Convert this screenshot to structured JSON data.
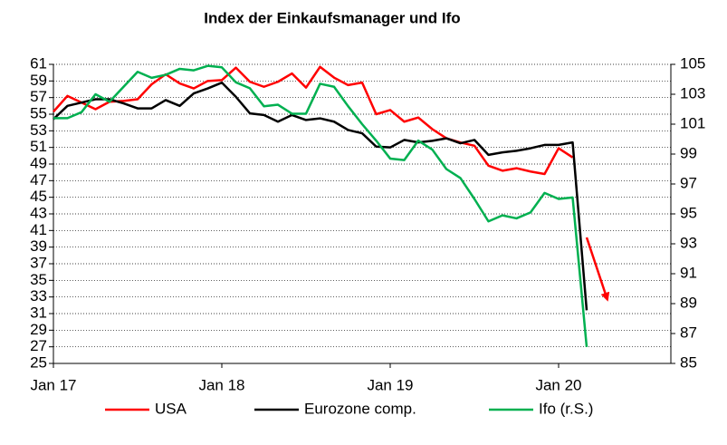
{
  "chart_data": {
    "type": "line",
    "title": "Index der Einkaufsmanager und Ifo",
    "x": [
      0,
      1,
      2,
      3,
      4,
      5,
      6,
      7,
      8,
      9,
      10,
      11,
      12,
      13,
      14,
      15,
      16,
      17,
      18,
      19,
      20,
      21,
      22,
      23,
      24,
      25,
      26,
      27,
      28,
      29,
      30,
      31,
      32,
      33,
      34,
      35,
      36,
      37,
      38
    ],
    "xlim": [
      0,
      44
    ],
    "xticks": [
      {
        "value": 0,
        "label": "Jan 17"
      },
      {
        "value": 12,
        "label": "Jan 18"
      },
      {
        "value": 24,
        "label": "Jan 19"
      },
      {
        "value": 36,
        "label": "Jan 20"
      }
    ],
    "ylim": [
      25,
      61
    ],
    "yticks": [
      25,
      27,
      29,
      31,
      33,
      35,
      37,
      39,
      41,
      43,
      45,
      47,
      49,
      51,
      53,
      55,
      57,
      59,
      61
    ],
    "y2lim": [
      85,
      105
    ],
    "y2ticks": [
      85,
      87,
      89,
      91,
      93,
      95,
      97,
      99,
      101,
      103,
      105
    ],
    "grid": true,
    "legend": "bottom",
    "series": [
      {
        "name": "USA",
        "color": "#ff0000",
        "values": [
          55.3,
          57.2,
          56.4,
          55.6,
          56.5,
          56.6,
          56.8,
          58.6,
          59.8,
          58.7,
          58.1,
          59.0,
          59.1,
          60.6,
          58.9,
          58.3,
          58.9,
          59.9,
          58.2,
          60.7,
          59.4,
          58.5,
          58.8,
          55.0,
          55.5,
          54.1,
          54.6,
          53.2,
          52.1,
          51.6,
          51.2,
          48.8,
          48.2,
          48.5,
          48.1,
          47.8,
          50.9,
          49.8,
          null
        ]
      },
      {
        "name": "Eurozone comp.",
        "color": "#000000",
        "values": [
          54.4,
          56.0,
          56.4,
          56.8,
          56.8,
          56.3,
          55.7,
          55.7,
          56.7,
          56.0,
          57.5,
          58.1,
          58.8,
          57.1,
          55.1,
          54.9,
          54.1,
          54.9,
          54.3,
          54.5,
          54.1,
          53.1,
          52.7,
          51.1,
          51.0,
          51.9,
          51.6,
          51.8,
          52.1,
          51.5,
          51.9,
          50.1,
          50.4,
          50.6,
          50.9,
          51.3,
          51.3,
          51.6,
          31.4
        ]
      },
      {
        "name": "Ifo (r.S.)",
        "color": "#00b050",
        "axis": "y2",
        "values": [
          101.4,
          101.4,
          101.8,
          103.0,
          102.5,
          103.5,
          104.5,
          104.1,
          104.3,
          104.7,
          104.6,
          104.9,
          104.8,
          103.8,
          103.4,
          102.2,
          102.3,
          101.7,
          101.7,
          103.7,
          103.5,
          102.2,
          101.0,
          99.9,
          98.7,
          98.6,
          99.9,
          99.3,
          98.0,
          97.4,
          96.0,
          94.5,
          94.9,
          94.7,
          95.1,
          96.4,
          96.0,
          96.1,
          86.1
        ]
      }
    ]
  }
}
